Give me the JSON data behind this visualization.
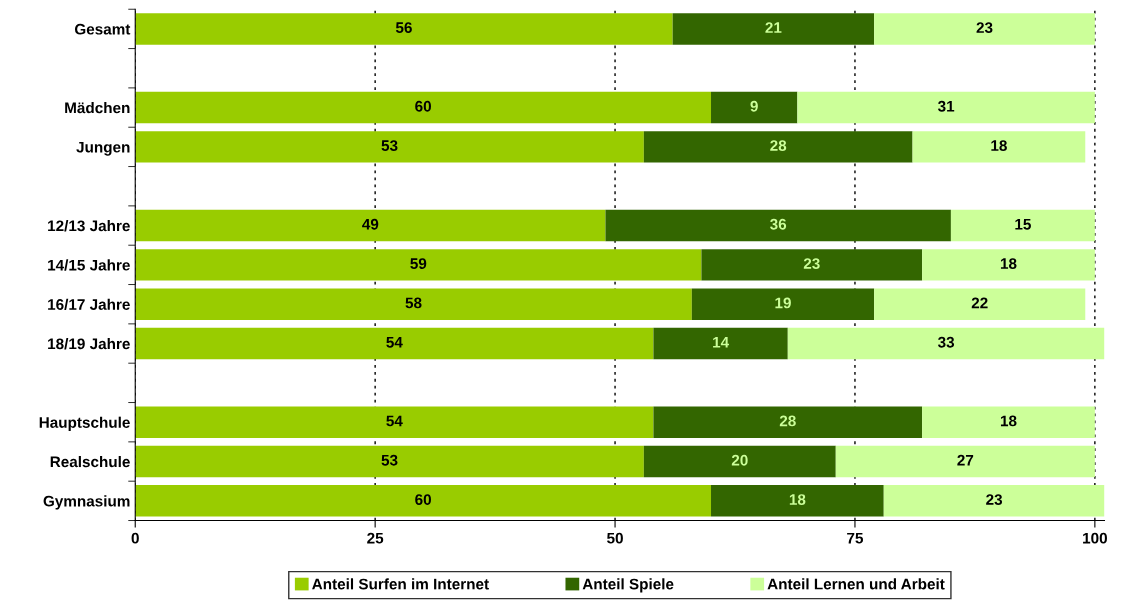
{
  "chart_data": {
    "type": "bar",
    "orientation": "horizontal",
    "stacked": true,
    "categories": [
      "Gesamt",
      null,
      "Mädchen",
      "Jungen",
      null,
      "12/13 Jahre",
      "14/15 Jahre",
      "16/17 Jahre",
      "18/19 Jahre",
      null,
      "Hauptschule",
      "Realschule",
      "Gymnasium"
    ],
    "series": [
      {
        "name": "Anteil Surfen im Internet",
        "color": "#99cc00",
        "values": [
          56,
          null,
          60,
          53,
          null,
          49,
          59,
          58,
          54,
          null,
          54,
          53,
          60
        ]
      },
      {
        "name": "Anteil Spiele",
        "color": "#336600",
        "values": [
          21,
          null,
          9,
          28,
          null,
          36,
          23,
          19,
          14,
          null,
          28,
          20,
          18
        ]
      },
      {
        "name": "Anteil Lernen und Arbeit",
        "color": "#ccff99",
        "values": [
          23,
          null,
          31,
          18,
          null,
          15,
          18,
          22,
          33,
          null,
          18,
          27,
          23
        ]
      }
    ],
    "xlim": [
      0,
      101
    ],
    "xticks": [
      0,
      25,
      50,
      75,
      100
    ],
    "grid": "x",
    "legend": "bottom",
    "data_labels": true
  }
}
